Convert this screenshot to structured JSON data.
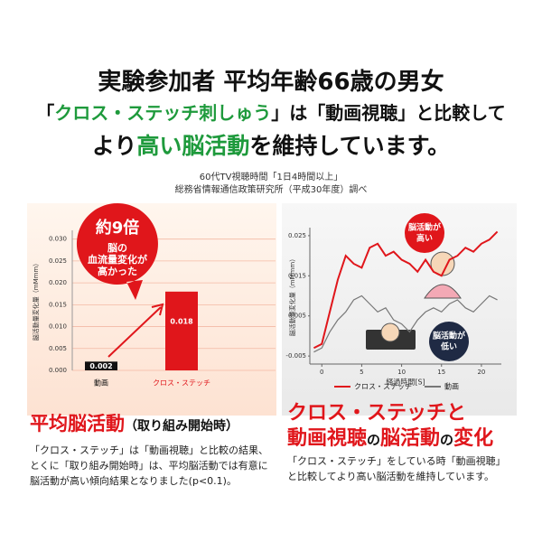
{
  "header": {
    "line1": "実験参加者 平均年齢66歳の男女",
    "line2": [
      {
        "text": "「",
        "color": "#111111"
      },
      {
        "text": "クロス・ステッチ刺しゅう",
        "color": "#1e9a3c"
      },
      {
        "text": "」は「",
        "color": "#111111"
      },
      {
        "text": "動画視聴",
        "color": "#111111"
      },
      {
        "text": "」と比較して",
        "color": "#111111"
      }
    ],
    "line3": [
      {
        "text": "より",
        "color": "#111111"
      },
      {
        "text": "高い脳活動",
        "color": "#1e9a3c"
      },
      {
        "text": "を維持しています。",
        "color": "#111111"
      }
    ]
  },
  "source": [
    "60代TV視聴時間「1日4時間以上」",
    "総務省情報通信政策研究所（平成30年度）調べ"
  ],
  "chart_data": [
    {
      "type": "bar",
      "y_label": "脳活動量変化量（mMmm）",
      "categories": [
        "動画",
        "クロス・ステッチ"
      ],
      "values": [
        0.002,
        0.018
      ],
      "value_labels": [
        "0.002",
        "0.018"
      ],
      "colors": [
        "#111111",
        "#e0161b"
      ],
      "ylim": [
        0,
        0.032
      ],
      "yticks": [
        {
          "value": 0,
          "label": "0.000"
        },
        0.005,
        {
          "value": 0.01,
          "label": "0.010"
        },
        0.015,
        {
          "value": 0.02,
          "label": "0.020"
        },
        0.025,
        {
          "value": 0.03,
          "label": "0.030"
        }
      ],
      "grid": true,
      "callout": [
        "約9倍",
        "脳の",
        "血流量変化が",
        "高かった"
      ]
    },
    {
      "type": "line",
      "y_label": "脳活動量変化量（mMmm）",
      "x_label": "経過時間[S]",
      "x": [
        -1,
        0,
        1,
        2,
        3,
        4,
        5,
        6,
        7,
        8,
        9,
        10,
        11,
        12,
        13,
        14,
        15,
        16,
        17,
        18,
        19,
        20,
        21,
        22
      ],
      "series": [
        {
          "name": "クロス・ステッチ",
          "color": "#e0161b",
          "values": [
            -0.003,
            -0.002,
            0.006,
            0.014,
            0.02,
            0.018,
            0.017,
            0.022,
            0.023,
            0.02,
            0.021,
            0.019,
            0.018,
            0.016,
            0.019,
            0.016,
            0.015,
            0.019,
            0.02,
            0.022,
            0.021,
            0.023,
            0.024,
            0.026
          ]
        },
        {
          "name": "動画",
          "color": "#777777",
          "values": [
            -0.004,
            -0.003,
            0.001,
            0.004,
            0.006,
            0.009,
            0.01,
            0.008,
            0.006,
            0.007,
            0.004,
            0.003,
            0.001,
            0.004,
            0.006,
            0.007,
            0.006,
            0.008,
            0.009,
            0.007,
            0.006,
            0.008,
            0.01,
            0.009
          ]
        }
      ],
      "xlim": [
        -1.5,
        22.5
      ],
      "xticks": [
        0,
        5,
        10,
        15,
        20
      ],
      "ylim": [
        -0.007,
        0.027
      ],
      "yticks": [
        -0.005,
        0.005,
        0.015,
        0.025
      ],
      "grid": false,
      "annotations": [
        [
          "脳活動が",
          "高い"
        ],
        [
          "脳活動が",
          "低い"
        ]
      ]
    }
  ],
  "left_caption": {
    "title": "平均脳活動",
    "subtitle": "（取り組み開始時）",
    "text": "「クロス・ステッチ」は「動画視聴」と比較の結果、とくに「取り組み開始時」は、平均脳活動では有意に脳活動が高い傾向結果となりました(p<0.1)。"
  },
  "right_caption": {
    "title": [
      [
        {
          "text": "クロス・ステッチと",
          "color": "#e0161b"
        }
      ],
      [
        {
          "text": "動画視聴",
          "color": "#e0161b"
        },
        {
          "text": "の",
          "color": "#111111"
        },
        {
          "text": "脳活動",
          "color": "#e0161b"
        },
        {
          "text": "の",
          "color": "#111111"
        },
        {
          "text": "変化",
          "color": "#e0161b"
        }
      ]
    ],
    "text": "「クロス・ステッチ」をしている時「動画視聴」と比較してより高い脳活動を維持しています。"
  }
}
